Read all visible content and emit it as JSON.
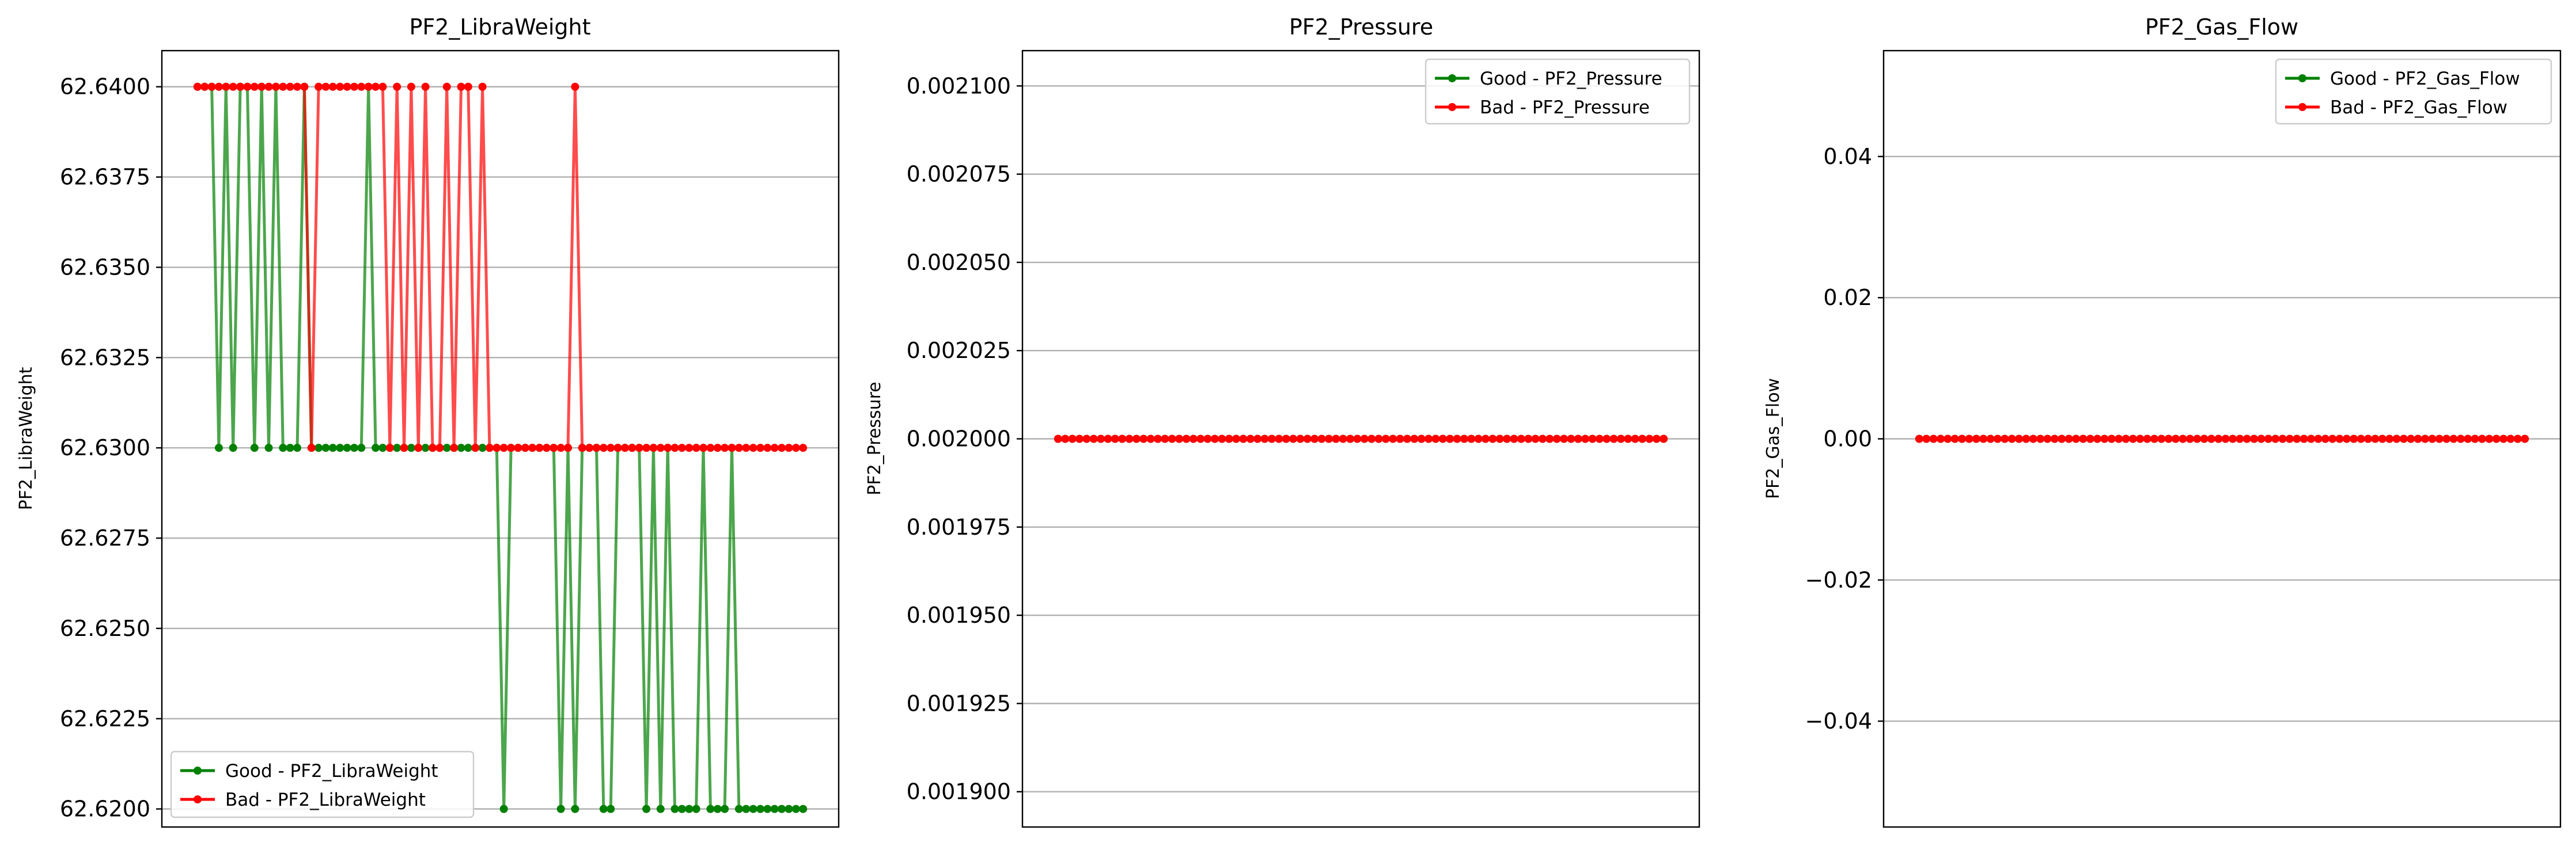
{
  "chart_data": [
    {
      "type": "line",
      "title": "PF2_LibraWeight",
      "xlabel": "",
      "ylabel": "PF2_LibraWeight",
      "ylim": [
        62.6195,
        62.641
      ],
      "xlim": [
        -5,
        90
      ],
      "yticks": [
        "62.6200",
        "62.6225",
        "62.6250",
        "62.6275",
        "62.6300",
        "62.6325",
        "62.6350",
        "62.6375",
        "62.6400"
      ],
      "grid": "y",
      "legend_position": "lower-left",
      "series": [
        {
          "name": "Good - PF2_LibraWeight",
          "color": "#008000",
          "x": [
            0,
            1,
            2,
            3,
            4,
            5,
            6,
            7,
            8,
            9,
            10,
            11,
            12,
            13,
            14,
            15,
            16,
            17,
            18,
            19,
            20,
            21,
            22,
            23,
            24,
            25,
            26,
            27,
            28,
            29,
            30,
            31,
            32,
            33,
            34,
            35,
            36,
            37,
            38,
            39,
            40,
            41,
            42,
            43,
            44,
            45,
            46,
            47,
            48,
            49,
            50,
            51,
            52,
            53,
            54,
            55,
            56,
            57,
            58,
            59,
            60,
            61,
            62,
            63,
            64,
            65,
            66,
            67,
            68,
            69,
            70,
            71,
            72,
            73,
            74,
            75,
            76,
            77,
            78,
            79,
            80,
            81,
            82,
            83,
            84,
            85
          ],
          "y": [
            62.64,
            62.64,
            62.64,
            62.63,
            62.64,
            62.63,
            62.64,
            62.64,
            62.63,
            62.64,
            62.63,
            62.64,
            62.63,
            62.63,
            62.63,
            62.64,
            62.63,
            62.63,
            62.63,
            62.63,
            62.63,
            62.63,
            62.63,
            62.63,
            62.64,
            62.63,
            62.63,
            62.63,
            62.63,
            62.63,
            62.63,
            62.63,
            62.63,
            62.63,
            62.63,
            62.63,
            62.63,
            62.63,
            62.63,
            62.63,
            62.63,
            62.63,
            62.63,
            62.62,
            62.63,
            62.63,
            62.63,
            62.63,
            62.63,
            62.63,
            62.63,
            62.62,
            62.63,
            62.62,
            62.63,
            62.63,
            62.63,
            62.62,
            62.62,
            62.63,
            62.63,
            62.63,
            62.63,
            62.62,
            62.63,
            62.62,
            62.63,
            62.62,
            62.62,
            62.62,
            62.62,
            62.63,
            62.62,
            62.62,
            62.62,
            62.63,
            62.62,
            62.62,
            62.62,
            62.62,
            62.62,
            62.62,
            62.62,
            62.62,
            62.62,
            62.62
          ]
        },
        {
          "name": "Bad - PF2_LibraWeight",
          "color": "#ff0000",
          "x": [
            0,
            1,
            2,
            3,
            4,
            5,
            6,
            7,
            8,
            9,
            10,
            11,
            12,
            13,
            14,
            15,
            16,
            17,
            18,
            19,
            20,
            21,
            22,
            23,
            24,
            25,
            26,
            27,
            28,
            29,
            30,
            31,
            32,
            33,
            34,
            35,
            36,
            37,
            38,
            39,
            40,
            41,
            42,
            43,
            44,
            45,
            46,
            47,
            48,
            49,
            50,
            51,
            52,
            53,
            54,
            55,
            56,
            57,
            58,
            59,
            60,
            61,
            62,
            63,
            64,
            65,
            66,
            67,
            68,
            69,
            70,
            71,
            72,
            73,
            74,
            75,
            76,
            77,
            78,
            79,
            80,
            81,
            82,
            83,
            84,
            85
          ],
          "y": [
            62.64,
            62.64,
            62.64,
            62.64,
            62.64,
            62.64,
            62.64,
            62.64,
            62.64,
            62.64,
            62.64,
            62.64,
            62.64,
            62.64,
            62.64,
            62.64,
            62.63,
            62.64,
            62.64,
            62.64,
            62.64,
            62.64,
            62.64,
            62.64,
            62.64,
            62.64,
            62.64,
            62.63,
            62.64,
            62.63,
            62.64,
            62.63,
            62.64,
            62.63,
            62.63,
            62.64,
            62.63,
            62.64,
            62.64,
            62.63,
            62.64,
            62.63,
            62.63,
            62.63,
            62.63,
            62.63,
            62.63,
            62.63,
            62.63,
            62.63,
            62.63,
            62.63,
            62.63,
            62.64,
            62.63,
            62.63,
            62.63,
            62.63,
            62.63,
            62.63,
            62.63,
            62.63,
            62.63,
            62.63,
            62.63,
            62.63,
            62.63,
            62.63,
            62.63,
            62.63,
            62.63,
            62.63,
            62.63,
            62.63,
            62.63,
            62.63,
            62.63,
            62.63,
            62.63,
            62.63,
            62.63,
            62.63,
            62.63,
            62.63,
            62.63,
            62.63
          ]
        }
      ]
    },
    {
      "type": "line",
      "title": "PF2_Pressure",
      "xlabel": "",
      "ylabel": "PF2_Pressure",
      "ylim": [
        0.00189,
        0.00211
      ],
      "xlim": [
        -5,
        90
      ],
      "yticks": [
        "0.001900",
        "0.001925",
        "0.001950",
        "0.001975",
        "0.002000",
        "0.002025",
        "0.002050",
        "0.002075",
        "0.002100"
      ],
      "grid": "y",
      "legend_position": "top-right",
      "series": [
        {
          "name": "Good - PF2_Pressure",
          "color": "#008000",
          "x_range": [
            0,
            85
          ],
          "constant": 0.002
        },
        {
          "name": "Bad - PF2_Pressure",
          "color": "#ff0000",
          "x_range": [
            0,
            85
          ],
          "constant": 0.002
        }
      ]
    },
    {
      "type": "line",
      "title": "PF2_Gas_Flow",
      "xlabel": "",
      "ylabel": "PF2_Gas_Flow",
      "ylim": [
        -0.055,
        0.055
      ],
      "xlim": [
        -5,
        90
      ],
      "yticks": [
        "−0.04",
        "−0.02",
        "0.00",
        "0.02",
        "0.04"
      ],
      "grid": "y",
      "legend_position": "top-right",
      "series": [
        {
          "name": "Good - PF2_Gas_Flow",
          "color": "#008000",
          "x_range": [
            0,
            85
          ],
          "constant": 0.0
        },
        {
          "name": "Bad - PF2_Gas_Flow",
          "color": "#ff0000",
          "x_range": [
            0,
            85
          ],
          "constant": 0.0
        }
      ]
    }
  ]
}
